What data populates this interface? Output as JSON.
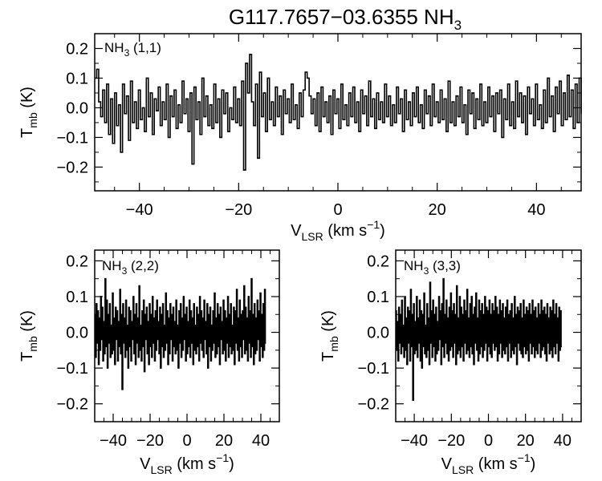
{
  "figure": {
    "title": "G117.7657−03.6355 NH",
    "title_sub": "3"
  },
  "chart_data": [
    {
      "type": "line",
      "line_style": "step",
      "panel": "top",
      "label": "NH",
      "label_sub": "3",
      "label_rest": " (1,1)",
      "xlabel": "V",
      "xlabel_sub": "LSR",
      "xlabel_rest": " (km s",
      "xlabel_sup": "−1",
      "xlabel_end": ")",
      "ylabel": "T",
      "ylabel_sub": "mb",
      "ylabel_rest": " (K)",
      "xlim": [
        -49,
        49
      ],
      "ylim": [
        -0.28,
        0.25
      ],
      "xticks": [
        -40,
        -20,
        0,
        20,
        40
      ],
      "xtick_labels": [
        "−40",
        "−20",
        "0",
        "20",
        "40"
      ],
      "yticks": [
        -0.2,
        -0.1,
        0.0,
        0.1,
        0.2
      ],
      "ytick_labels": [
        "−0.2",
        "−0.1",
        "0.0",
        "0.1",
        "0.2"
      ],
      "step": 0.2,
      "series": [
        {
          "x_start": -49.0,
          "x_step": 0.4,
          "y": [
            0.1,
            0.13,
            0.02,
            -0.03,
            0.06,
            -0.05,
            0.08,
            -0.09,
            0.03,
            -0.12,
            0.05,
            -0.06,
            0.01,
            -0.15,
            0.08,
            -0.02,
            0.04,
            -0.11,
            0.09,
            -0.05,
            0.02,
            -0.07,
            0.06,
            -0.04,
            0.0,
            -0.08,
            0.1,
            -0.03,
            0.05,
            -0.09,
            0.03,
            -0.01,
            0.07,
            -0.06,
            0.02,
            -0.04,
            0.08,
            -0.1,
            0.04,
            -0.03,
            0.06,
            -0.07,
            0.01,
            -0.05,
            0.09,
            -0.02,
            0.03,
            -0.08,
            0.05,
            -0.19,
            0.07,
            -0.04,
            0.02,
            -0.09,
            0.1,
            -0.03,
            0.04,
            -0.06,
            0.01,
            -0.07,
            0.08,
            -0.05,
            0.03,
            -0.1,
            0.06,
            -0.02,
            0.05,
            -0.08,
            0.0,
            -0.04,
            0.07,
            -0.05,
            0.03,
            -0.06,
            0.09,
            -0.21,
            0.15,
            0.05,
            0.18,
            0.02,
            -0.06,
            0.08,
            -0.17,
            0.12,
            -0.03,
            0.05,
            -0.08,
            0.1,
            -0.04,
            0.02,
            -0.06,
            0.07,
            -0.03,
            0.04,
            -0.09,
            0.06,
            -0.02,
            0.03,
            -0.05,
            0.08,
            -0.04,
            0.01,
            -0.07,
            0.05,
            -0.03,
            0.06,
            0.12,
            0.1,
            0.04,
            -0.02,
            0.03,
            -0.06,
            0.05,
            -0.08,
            0.07,
            -0.03,
            0.02,
            -0.05,
            0.04,
            -0.09,
            0.06,
            -0.02,
            0.03,
            -0.07,
            0.08,
            -0.04,
            0.01,
            -0.06,
            0.05,
            -0.03,
            0.07,
            -0.05,
            0.02,
            -0.08,
            0.06,
            -0.02,
            0.04,
            -0.06,
            0.09,
            -0.03,
            0.03,
            -0.07,
            0.05,
            -0.04,
            0.02,
            -0.05,
            0.08,
            -0.03,
            0.04,
            -0.06,
            0.01,
            -0.05,
            0.07,
            -0.02,
            0.03,
            -0.08,
            0.06,
            -0.04,
            0.02,
            -0.06,
            0.05,
            -0.03,
            0.07,
            -0.05,
            0.01,
            -0.07,
            0.06,
            -0.02,
            0.04,
            -0.06,
            0.08,
            -0.03,
            0.02,
            -0.05,
            0.06,
            -0.04,
            0.03,
            -0.08,
            0.09,
            -0.05,
            0.02,
            -0.06,
            0.04,
            -0.03,
            0.07,
            -0.05,
            0.01,
            -0.09,
            0.06,
            -0.02,
            0.05,
            -0.07,
            0.03,
            -0.04,
            0.08,
            -0.06,
            0.02,
            -0.05,
            0.07,
            -0.03,
            0.04,
            -0.08,
            0.05,
            -0.02,
            0.06,
            -0.1,
            0.03,
            -0.04,
            0.08,
            -0.06,
            0.02,
            -0.07,
            0.09,
            -0.03,
            0.05,
            -0.05,
            0.04,
            -0.09,
            0.07,
            -0.02,
            0.03,
            -0.06,
            0.08,
            -0.04,
            0.01,
            -0.07,
            0.06,
            -0.05,
            0.1,
            -0.03,
            0.04,
            -0.08,
            0.07,
            -0.02,
            0.09,
            -0.06,
            0.05,
            -0.04,
            0.11,
            -0.03,
            0.06,
            -0.07,
            0.08,
            -0.05,
            0.1,
            -0.02
          ]
        }
      ]
    },
    {
      "type": "line",
      "line_style": "step",
      "panel": "bottom-left",
      "label": "NH",
      "label_sub": "3",
      "label_rest": " (2,2)",
      "xlabel": "V",
      "xlabel_sub": "LSR",
      "xlabel_rest": " (km s",
      "xlabel_sup": "−1",
      "xlabel_end": ")",
      "ylabel": "T",
      "ylabel_sub": "mb",
      "ylabel_rest": " (K)",
      "xlim": [
        -50,
        50
      ],
      "ylim": [
        -0.25,
        0.23
      ],
      "xticks": [
        -40,
        -20,
        0,
        20,
        40
      ],
      "xtick_labels": [
        "−40",
        "−20",
        "0",
        "20",
        "40"
      ],
      "yticks": [
        -0.2,
        -0.1,
        0.0,
        0.1,
        0.2
      ],
      "ytick_labels": [
        "−0.2",
        "−0.1",
        "0.0",
        "0.1",
        "0.2"
      ],
      "series": [
        {
          "x_start": -50.0,
          "x_step": 0.4,
          "y": [
            0.05,
            -0.07,
            0.08,
            -0.03,
            0.06,
            -0.09,
            0.04,
            -0.05,
            0.1,
            -0.02,
            0.07,
            -0.08,
            0.03,
            -0.06,
            0.15,
            -0.04,
            0.09,
            -0.1,
            0.05,
            -0.03,
            0.08,
            -0.07,
            0.02,
            -0.06,
            0.11,
            -0.05,
            0.04,
            -0.09,
            0.07,
            -0.02,
            0.06,
            -0.08,
            0.03,
            -0.04,
            0.12,
            -0.06,
            0.05,
            -0.16,
            0.08,
            -0.03,
            0.04,
            -0.07,
            0.09,
            -0.05,
            0.02,
            -0.1,
            0.07,
            -0.04,
            0.06,
            -0.08,
            0.03,
            -0.02,
            0.1,
            -0.06,
            0.05,
            -0.09,
            0.08,
            -0.03,
            0.04,
            -0.07,
            0.13,
            -0.05,
            0.02,
            -0.08,
            0.06,
            -0.04,
            0.09,
            -0.11,
            0.05,
            -0.02,
            0.07,
            -0.06,
            0.03,
            -0.09,
            0.08,
            -0.04,
            0.05,
            -0.07,
            0.1,
            -0.03,
            0.04,
            -0.08,
            0.06,
            -0.05,
            0.09,
            -0.02,
            0.03,
            -0.06,
            0.07,
            -0.1,
            0.05,
            -0.04,
            0.08,
            -0.07,
            0.02,
            -0.05,
            0.11,
            -0.03,
            0.06,
            -0.09,
            0.04,
            -0.06,
            0.08,
            -0.02,
            0.05,
            -0.08,
            0.07,
            -0.04,
            0.03,
            -0.06,
            0.09,
            -0.05,
            0.02,
            -0.1,
            0.06,
            -0.03,
            0.08,
            -0.07,
            0.04,
            -0.05,
            0.1,
            -0.02,
            0.05,
            -0.08,
            0.07,
            -0.06,
            0.03,
            -0.04,
            0.09,
            -0.07,
            0.06,
            -0.03,
            0.04,
            -0.09,
            0.08,
            -0.05,
            0.02,
            -0.06,
            0.07,
            -0.04,
            0.05,
            -0.08,
            0.1,
            -0.03,
            0.06,
            -0.05,
            0.04,
            -0.07,
            0.09,
            -0.02,
            0.03,
            -0.06,
            0.08,
            -0.1,
            0.05,
            -0.04,
            0.07,
            -0.08,
            0.02,
            -0.05,
            0.06,
            -0.03,
            0.11,
            -0.07,
            0.04,
            -0.06,
            0.08,
            -0.04,
            0.05,
            -0.09,
            0.07,
            -0.02,
            0.03,
            -0.06,
            0.09,
            -0.05,
            0.06,
            -0.08,
            0.04,
            -0.03,
            0.1,
            -0.07,
            0.05,
            -0.04,
            0.08,
            -0.06,
            0.02,
            -0.05,
            0.07,
            -0.09,
            0.06,
            -0.03,
            0.12,
            -0.05,
            0.04,
            -0.08,
            0.09,
            -0.04,
            0.05,
            -0.07,
            0.06,
            -0.02,
            0.13,
            -0.06,
            0.07,
            -0.05,
            0.04,
            -0.08,
            0.1,
            -0.03,
            0.06,
            -0.07,
            0.15,
            -0.04,
            0.05,
            -0.09,
            0.08,
            -0.06,
            0.04,
            -0.05,
            0.09,
            -0.02,
            0.06,
            -0.08,
            0.11,
            -0.04,
            0.05,
            -0.07,
            0.08,
            -0.05,
            0.12,
            -0.03
          ]
        }
      ]
    },
    {
      "type": "line",
      "line_style": "step",
      "panel": "bottom-right",
      "label": "NH",
      "label_sub": "3",
      "label_rest": " (3,3)",
      "xlabel": "V",
      "xlabel_sub": "LSR",
      "xlabel_rest": " (km s",
      "xlabel_sup": "−1",
      "xlabel_end": ")",
      "ylabel": "T",
      "ylabel_sub": "mb",
      "ylabel_rest": " (K)",
      "xlim": [
        -50,
        50
      ],
      "ylim": [
        -0.25,
        0.23
      ],
      "xticks": [
        -40,
        -20,
        0,
        20,
        40
      ],
      "xtick_labels": [
        "−40",
        "−20",
        "0",
        "20",
        "40"
      ],
      "yticks": [
        -0.2,
        -0.1,
        0.0,
        0.1,
        0.2
      ],
      "ytick_labels": [
        "−0.2",
        "−0.1",
        "0.0",
        "0.1",
        "0.2"
      ],
      "series": [
        {
          "x_start": -50.0,
          "x_step": 0.4,
          "y": [
            0.06,
            -0.05,
            0.03,
            -0.08,
            0.07,
            -0.03,
            0.05,
            -0.06,
            0.09,
            -0.04,
            0.02,
            -0.07,
            0.1,
            -0.05,
            0.04,
            -0.09,
            0.07,
            -0.03,
            0.06,
            -0.08,
            0.12,
            -0.04,
            0.05,
            -0.19,
            0.08,
            -0.06,
            0.03,
            -0.05,
            0.1,
            -0.07,
            0.04,
            -0.03,
            0.09,
            -0.08,
            0.06,
            -0.1,
            0.05,
            -0.04,
            0.11,
            -0.06,
            0.02,
            -0.07,
            0.08,
            -0.05,
            0.04,
            -0.09,
            0.14,
            -0.03,
            0.06,
            -0.07,
            0.09,
            -0.04,
            0.05,
            -0.08,
            0.07,
            -0.06,
            0.03,
            -0.05,
            0.1,
            -0.02,
            0.06,
            -0.09,
            0.08,
            -0.04,
            0.15,
            -0.07,
            0.05,
            -0.03,
            0.09,
            -0.06,
            0.04,
            -0.08,
            0.07,
            -0.05,
            0.11,
            -0.04,
            0.06,
            -0.07,
            0.08,
            -0.03,
            0.05,
            -0.09,
            0.13,
            -0.06,
            0.04,
            -0.05,
            0.1,
            -0.07,
            0.07,
            -0.04,
            0.05,
            -0.08,
            0.09,
            -0.03,
            0.06,
            -0.06,
            0.12,
            -0.05,
            0.04,
            -0.07,
            0.08,
            -0.04,
            0.1,
            -0.06,
            0.05,
            -0.09,
            0.07,
            -0.03,
            0.11,
            -0.05,
            0.04,
            -0.08,
            0.09,
            -0.06,
            0.06,
            -0.04,
            0.08,
            -0.07,
            0.05,
            -0.05,
            0.1,
            -0.03,
            0.07,
            -0.08,
            0.06,
            -0.04,
            0.09,
            -0.06,
            0.05,
            -0.07,
            0.08,
            -0.03,
            0.06,
            -0.05,
            0.1,
            -0.04,
            0.07,
            -0.08,
            0.05,
            -0.06,
            0.09,
            -0.03,
            0.06,
            -0.07,
            0.08,
            -0.05,
            0.04,
            -0.06,
            0.07,
            -0.04,
            0.09,
            -0.08,
            0.05,
            -0.03,
            0.06,
            -0.07,
            0.08,
            -0.05,
            0.04,
            -0.06,
            0.1,
            -0.04,
            0.05,
            -0.09,
            0.07,
            -0.03,
            0.06,
            -0.05,
            0.08,
            -0.06,
            0.04,
            -0.07,
            0.09,
            -0.04,
            0.05,
            -0.06,
            0.07,
            -0.05,
            0.06,
            -0.08,
            0.08,
            -0.03,
            0.05,
            -0.06,
            0.09,
            -0.04,
            0.06,
            -0.07,
            0.07,
            -0.05,
            0.04,
            -0.06,
            0.08,
            -0.03,
            0.05,
            -0.07,
            0.09,
            -0.05,
            0.06,
            -0.04,
            0.07,
            -0.06,
            0.05,
            -0.08,
            0.08,
            -0.03,
            0.04,
            -0.06,
            0.07,
            -0.05,
            0.06,
            -0.07,
            0.09,
            -0.04,
            0.05,
            -0.06,
            0.08,
            -0.03,
            0.04,
            -0.08,
            0.07,
            -0.05,
            0.06,
            -0.04
          ]
        }
      ]
    }
  ]
}
